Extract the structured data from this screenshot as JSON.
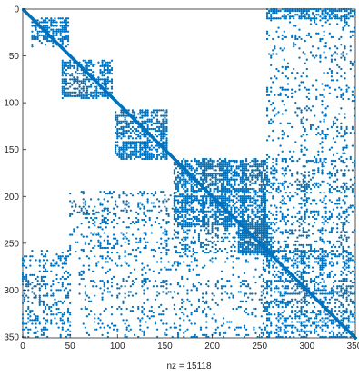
{
  "chart_data": {
    "type": "scatter",
    "title": "",
    "xlabel_text": "nz = 15118",
    "xlim": [
      0,
      351
    ],
    "ylim": [
      0,
      351
    ],
    "y_reversed": true,
    "x_ticks": [
      0,
      50,
      100,
      150,
      200,
      250,
      300,
      350
    ],
    "x_tick_labels": [
      "0",
      "50",
      "100",
      "150",
      "200",
      "250",
      "300",
      "350"
    ],
    "y_ticks": [
      0,
      50,
      100,
      150,
      200,
      250,
      300,
      350
    ],
    "y_tick_labels": [
      "0",
      "50",
      "100",
      "150",
      "200",
      "250",
      "300",
      "350"
    ],
    "grid": false,
    "marker_color": "#0072BD",
    "nonzero_count": 15118,
    "blocks": [
      {
        "name": "diagonal",
        "kind": "diagonal",
        "x": [
          0,
          351
        ],
        "y": [
          0,
          351
        ]
      },
      {
        "name": "block-1",
        "x": [
          10,
          48
        ],
        "y": [
          10,
          40
        ],
        "density": 0.55
      },
      {
        "name": "block-2",
        "x": [
          42,
          95
        ],
        "y": [
          55,
          95
        ],
        "density": 0.55
      },
      {
        "name": "block-3",
        "x": [
          98,
          152
        ],
        "y": [
          108,
          160
        ],
        "density": 0.55
      },
      {
        "name": "block-4",
        "x": [
          160,
          256
        ],
        "y": [
          162,
          232
        ],
        "density": 0.5
      },
      {
        "name": "block-5",
        "x": [
          228,
          262
        ],
        "y": [
          228,
          262
        ],
        "density": 0.85
      },
      {
        "name": "top-right-band",
        "x": [
          258,
          351
        ],
        "y": [
          0,
          10
        ],
        "density": 0.7
      },
      {
        "name": "right-col-upper",
        "x": [
          258,
          351
        ],
        "y": [
          10,
          160
        ],
        "density": 0.12
      },
      {
        "name": "mid-right",
        "x": [
          160,
          351
        ],
        "y": [
          160,
          260
        ],
        "density": 0.25
      },
      {
        "name": "bottom-left",
        "x": [
          0,
          50
        ],
        "y": [
          258,
          351
        ],
        "density": 0.25
      },
      {
        "name": "bottom-mid",
        "x": [
          60,
          260
        ],
        "y": [
          258,
          351
        ],
        "density": 0.12
      },
      {
        "name": "bottom-right",
        "x": [
          258,
          351
        ],
        "y": [
          258,
          351
        ],
        "density": 0.38
      },
      {
        "name": "left-mid",
        "x": [
          50,
          160
        ],
        "y": [
          195,
          260
        ],
        "density": 0.16
      }
    ]
  }
}
